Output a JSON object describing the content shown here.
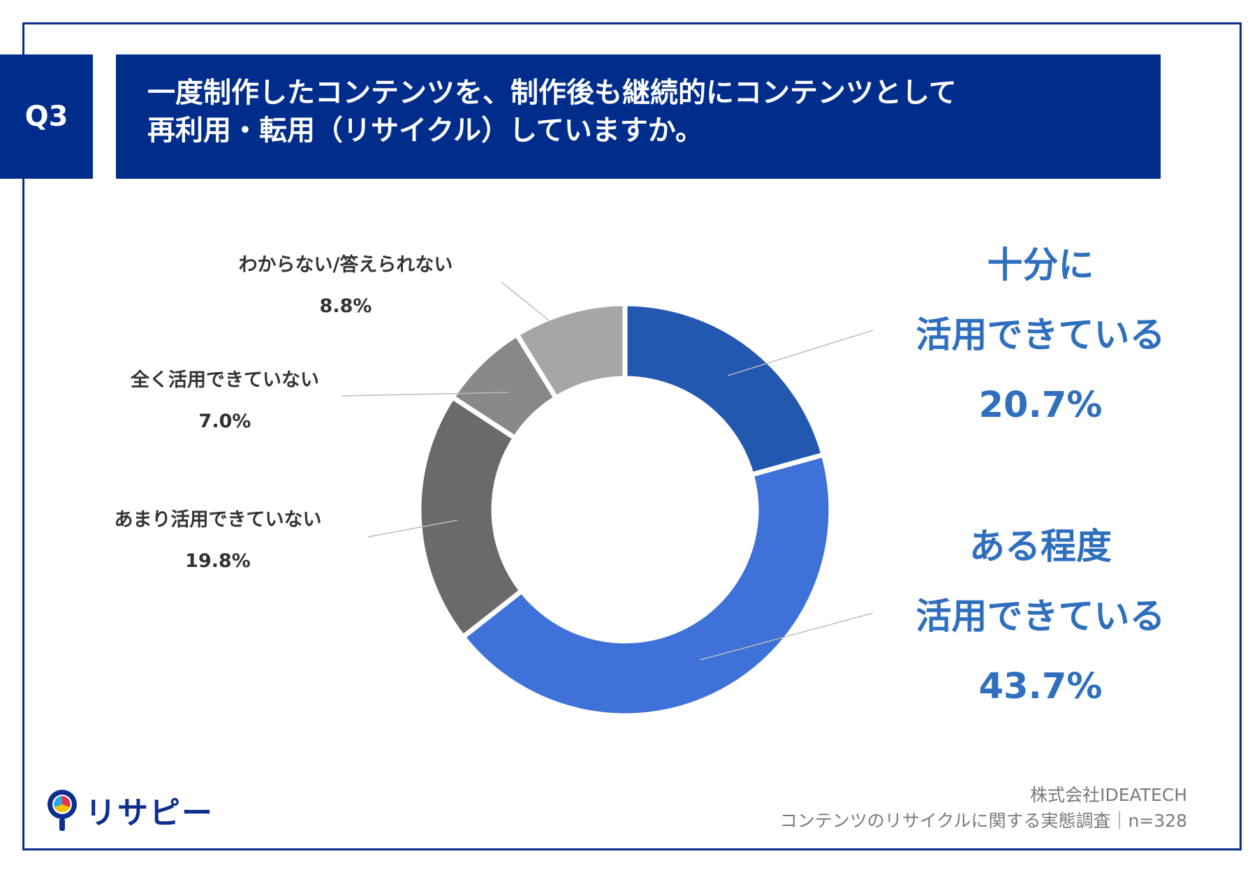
{
  "header": {
    "badge": "Q3",
    "title_line1": "一度制作したコンテンツを、制作後も継続的にコンテンツとして",
    "title_line2": "再利用・転用（リサイクル）していますか。"
  },
  "chart_data": {
    "type": "pie",
    "variant": "donut",
    "title": "一度制作したコンテンツを、制作後も継続的にコンテンツとして再利用・転用（リサイクル）していますか。",
    "n": 328,
    "slices": [
      {
        "label": "十分に活用できている",
        "lines": [
          "十分に",
          "活用できている"
        ],
        "value": 20.7,
        "value_label": "20.7%",
        "color": "#2358b0"
      },
      {
        "label": "ある程度活用できている",
        "lines": [
          "ある程度",
          "活用できている"
        ],
        "value": 43.7,
        "value_label": "43.7%",
        "color": "#3f72d8"
      },
      {
        "label": "あまり活用できていない",
        "lines": [
          "あまり活用できていない"
        ],
        "value": 19.8,
        "value_label": "19.8%",
        "color": "#6a6a6a"
      },
      {
        "label": "全く活用できていない",
        "lines": [
          "全く活用できていない"
        ],
        "value": 7.0,
        "value_label": "7.0%",
        "color": "#888888"
      },
      {
        "label": "わからない/答えられない",
        "lines": [
          "わからない/答えられない"
        ],
        "value": 8.8,
        "value_label": "8.8%",
        "color": "#a6a6a6"
      }
    ]
  },
  "logo": {
    "text": "リサピー",
    "icon": "lightbulb-pin-icon"
  },
  "footer": {
    "company": "株式会社IDEATECH",
    "survey": "コンテンツのリサイクルに関する実態調査｜n=328"
  },
  "colors": {
    "brand_navy": "#002c8c",
    "label_blue": "#2f6fbe",
    "label_gray": "#333333"
  }
}
